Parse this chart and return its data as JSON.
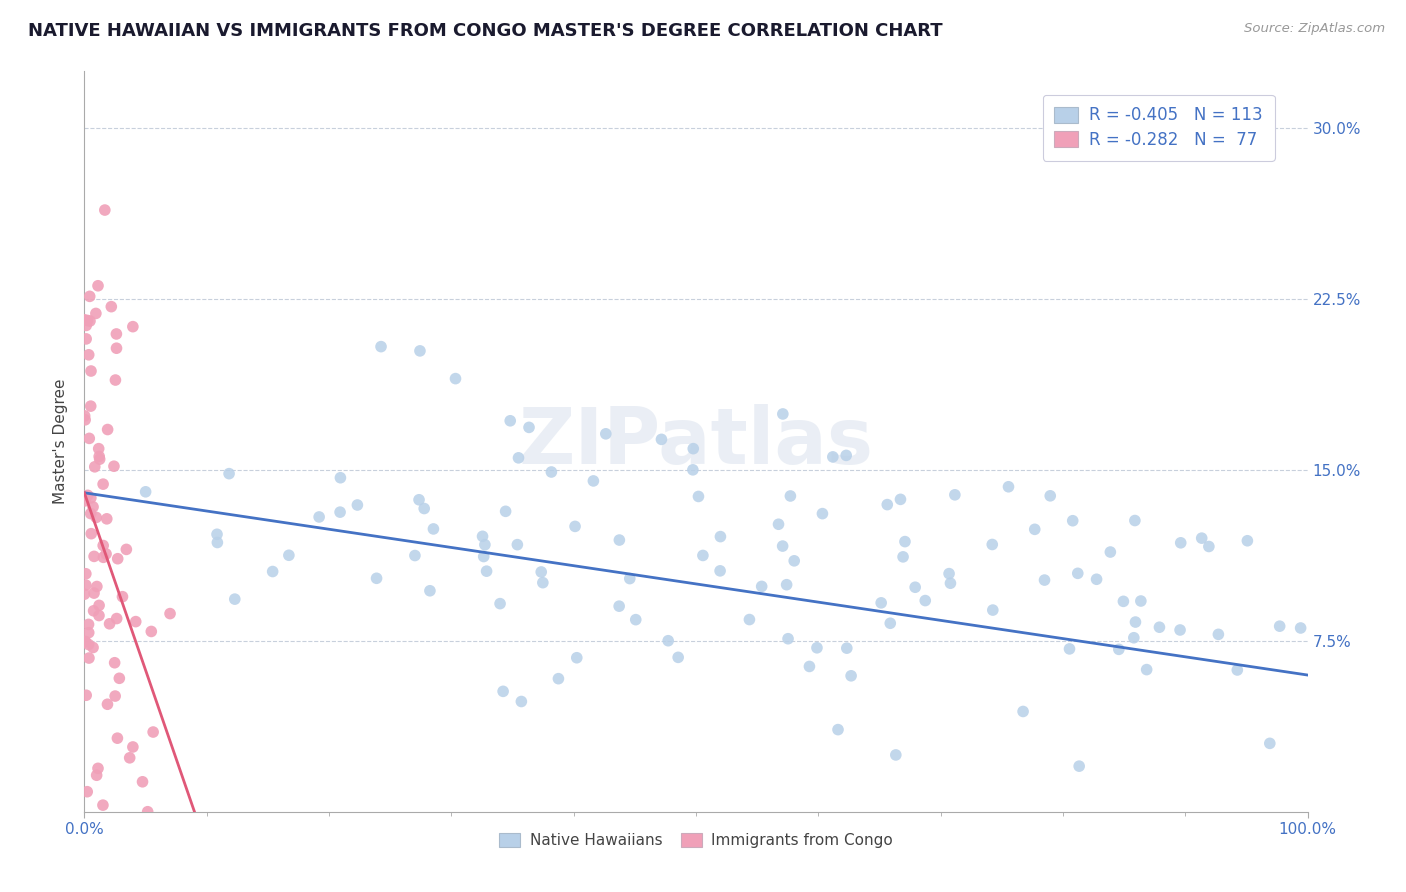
{
  "title": "NATIVE HAWAIIAN VS IMMIGRANTS FROM CONGO MASTER'S DEGREE CORRELATION CHART",
  "source": "Source: ZipAtlas.com",
  "ylabel": "Master's Degree",
  "yticks": [
    "7.5%",
    "15.0%",
    "22.5%",
    "30.0%"
  ],
  "ytick_vals": [
    0.075,
    0.15,
    0.225,
    0.3
  ],
  "legend_group1": "Native Hawaiians",
  "legend_group2": "Immigrants from Congo",
  "blue_color": "#b8d0e8",
  "pink_color": "#f0a0b8",
  "blue_line_color": "#4472c4",
  "pink_line_color": "#e05878",
  "r_blue": -0.405,
  "n_blue": 113,
  "r_pink": -0.282,
  "n_pink": 77,
  "ylim_max": 0.325,
  "xlim_max": 100
}
